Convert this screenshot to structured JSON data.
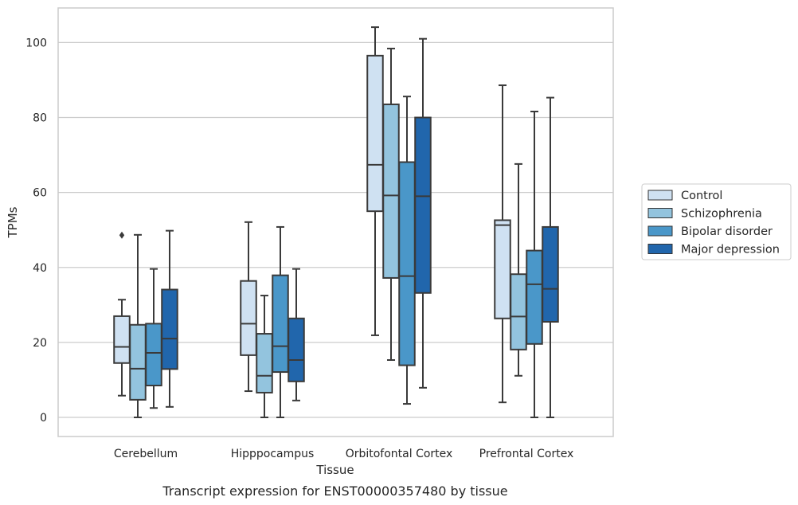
{
  "caption": "Transcript expression for ENST00000357480 by tissue",
  "chart_data": {
    "type": "box",
    "xlabel": "Tissue",
    "ylabel": "TPMs",
    "ylim": [
      -5,
      110
    ],
    "yticks": [
      0,
      20,
      40,
      60,
      80,
      100
    ],
    "grid": "horizontal",
    "legend_position": "right",
    "categories": [
      "Cerebellum",
      "Hipppocampus",
      "Orbitofontal Cortex",
      "Prefrontal Cortex"
    ],
    "series": [
      {
        "name": "Control",
        "color": "#cfe1f2",
        "boxes": [
          {
            "whislo": 5.8,
            "q1": 14.5,
            "med": 18.8,
            "q3": 27.0,
            "whishi": 31.4,
            "fliers": [
              48.6
            ]
          },
          {
            "whislo": 7.0,
            "q1": 16.6,
            "med": 25.0,
            "q3": 36.4,
            "whishi": 52.1,
            "fliers": []
          },
          {
            "whislo": 21.9,
            "q1": 55.0,
            "med": 67.4,
            "q3": 96.5,
            "whishi": 104.1,
            "fliers": []
          },
          {
            "whislo": 4.0,
            "q1": 26.4,
            "med": 51.3,
            "q3": 52.6,
            "whishi": 88.6,
            "fliers": []
          }
        ]
      },
      {
        "name": "Schizophrenia",
        "color": "#93c4de",
        "boxes": [
          {
            "whislo": 0.0,
            "q1": 4.7,
            "med": 13.0,
            "q3": 24.7,
            "whishi": 48.7,
            "fliers": []
          },
          {
            "whislo": 0.0,
            "q1": 6.6,
            "med": 11.1,
            "q3": 22.3,
            "whishi": 32.5,
            "fliers": []
          },
          {
            "whislo": 15.3,
            "q1": 37.2,
            "med": 59.2,
            "q3": 83.5,
            "whishi": 98.4,
            "fliers": []
          },
          {
            "whislo": 11.1,
            "q1": 18.1,
            "med": 26.9,
            "q3": 38.2,
            "whishi": 67.6,
            "fliers": []
          }
        ]
      },
      {
        "name": "Bipolar disorder",
        "color": "#4a97c9",
        "boxes": [
          {
            "whislo": 2.5,
            "q1": 8.5,
            "med": 17.2,
            "q3": 25.0,
            "whishi": 39.6,
            "fliers": []
          },
          {
            "whislo": 0.0,
            "q1": 12.1,
            "med": 19.0,
            "q3": 37.9,
            "whishi": 50.8,
            "fliers": []
          },
          {
            "whislo": 3.6,
            "q1": 13.9,
            "med": 37.7,
            "q3": 68.1,
            "whishi": 85.6,
            "fliers": []
          },
          {
            "whislo": 0.0,
            "q1": 19.6,
            "med": 35.5,
            "q3": 44.5,
            "whishi": 81.6,
            "fliers": []
          }
        ]
      },
      {
        "name": "Major depression",
        "color": "#2166ac",
        "boxes": [
          {
            "whislo": 2.8,
            "q1": 12.9,
            "med": 21.0,
            "q3": 34.1,
            "whishi": 49.8,
            "fliers": []
          },
          {
            "whislo": 4.5,
            "q1": 9.6,
            "med": 15.3,
            "q3": 26.4,
            "whishi": 39.6,
            "fliers": []
          },
          {
            "whislo": 7.9,
            "q1": 33.2,
            "med": 59.0,
            "q3": 80.0,
            "whishi": 101.0,
            "fliers": []
          },
          {
            "whislo": 0.0,
            "q1": 25.5,
            "med": 34.3,
            "q3": 50.8,
            "whishi": 85.3,
            "fliers": []
          }
        ]
      }
    ]
  }
}
